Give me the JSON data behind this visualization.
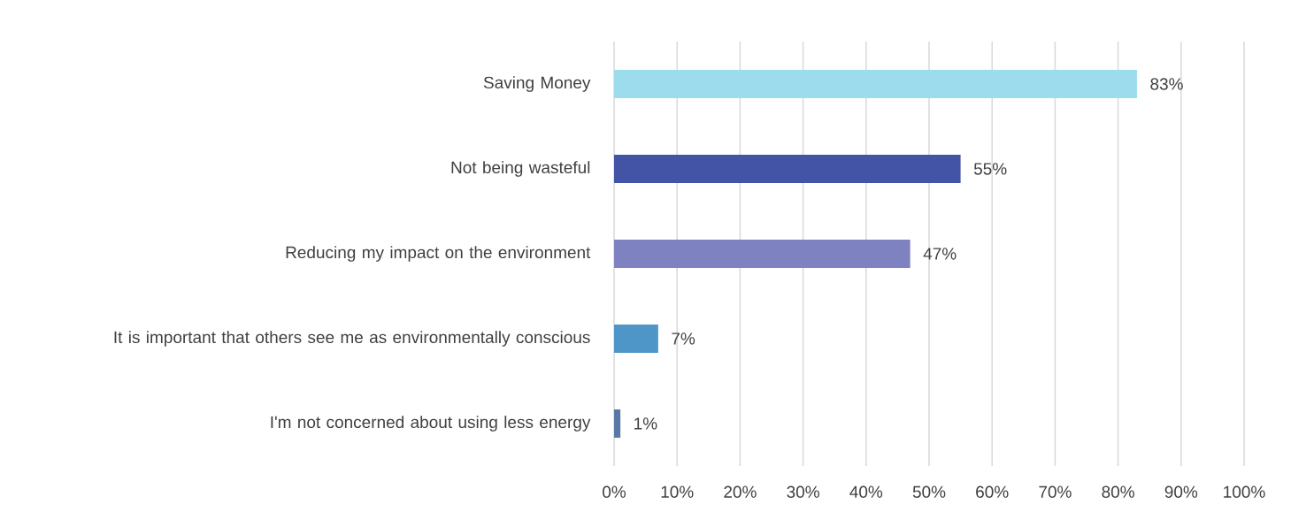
{
  "chart_data": {
    "type": "bar",
    "orientation": "horizontal",
    "categories": [
      "Saving Money",
      "Not being wasteful",
      "Reducing my impact on the environment",
      "It is important that others see me as environmentally conscious",
      "I'm not concerned about using less energy"
    ],
    "values": [
      83,
      55,
      47,
      7,
      1
    ],
    "colors": [
      "#9ddcec",
      "#4353a5",
      "#7f82c0",
      "#4e95c8",
      "#5879a8"
    ],
    "value_labels": [
      "83%",
      "55%",
      "47%",
      "7%",
      "1%"
    ],
    "xlim": [
      0,
      100
    ],
    "xticks": [
      {
        "value": 0,
        "label": "0%"
      },
      {
        "value": 10,
        "label": "10%"
      },
      {
        "value": 20,
        "label": "20%"
      },
      {
        "value": 30,
        "label": "30%"
      },
      {
        "value": 40,
        "label": "40%"
      },
      {
        "value": 50,
        "label": "50%"
      },
      {
        "value": 60,
        "label": "60%"
      },
      {
        "value": 70,
        "label": "70%"
      },
      {
        "value": 80,
        "label": "80%"
      },
      {
        "value": 90,
        "label": "90%"
      },
      {
        "value": 100,
        "label": "100%"
      }
    ],
    "grid": "x"
  }
}
